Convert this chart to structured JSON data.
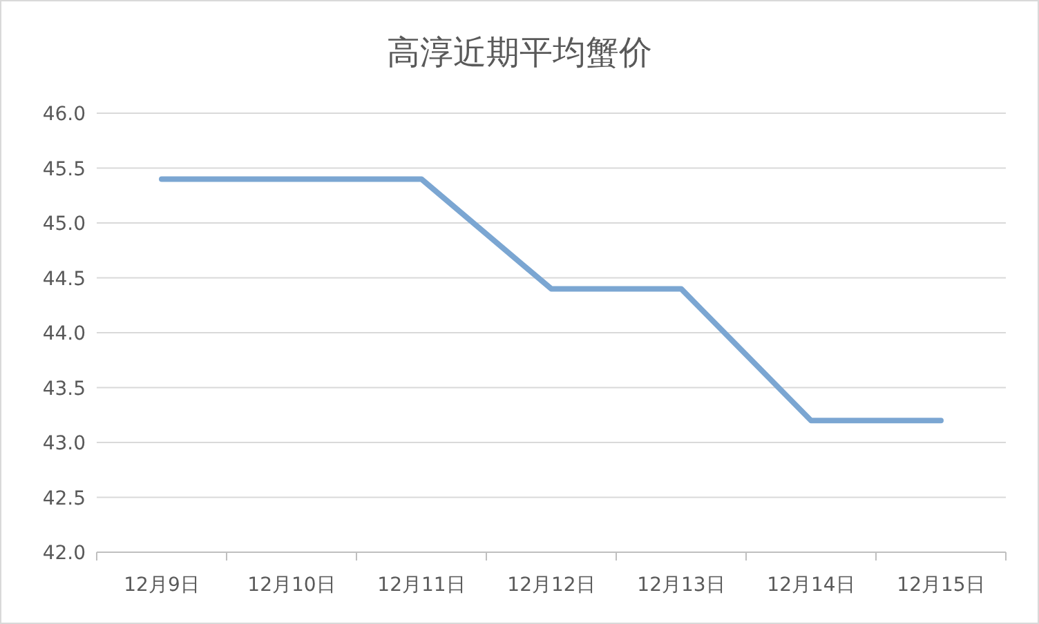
{
  "chart_data": {
    "type": "line",
    "title": "高淳近期平均蟹价",
    "categories": [
      "12月9日",
      "12月10日",
      "12月11日",
      "12月12日",
      "12月13日",
      "12月14日",
      "12月15日"
    ],
    "series": [
      {
        "color": "#7ba6d2",
        "values": [
          45.4,
          45.4,
          45.4,
          44.4,
          44.4,
          43.2,
          43.2
        ]
      }
    ],
    "ylim": [
      42,
      46
    ],
    "yticks": [
      {
        "value": 42,
        "label": "42.0"
      },
      {
        "value": 42.5,
        "label": "42.5"
      },
      {
        "value": 43,
        "label": "43.0"
      },
      {
        "value": 43.5,
        "label": "43.5"
      },
      {
        "value": 44,
        "label": "44.0"
      },
      {
        "value": 44.5,
        "label": "44.5"
      },
      {
        "value": 45,
        "label": "45.0"
      },
      {
        "value": 45.5,
        "label": "45.5"
      },
      {
        "value": 46,
        "label": "46.0"
      }
    ],
    "grid": "y",
    "marker": "none",
    "line_style": "solid"
  }
}
